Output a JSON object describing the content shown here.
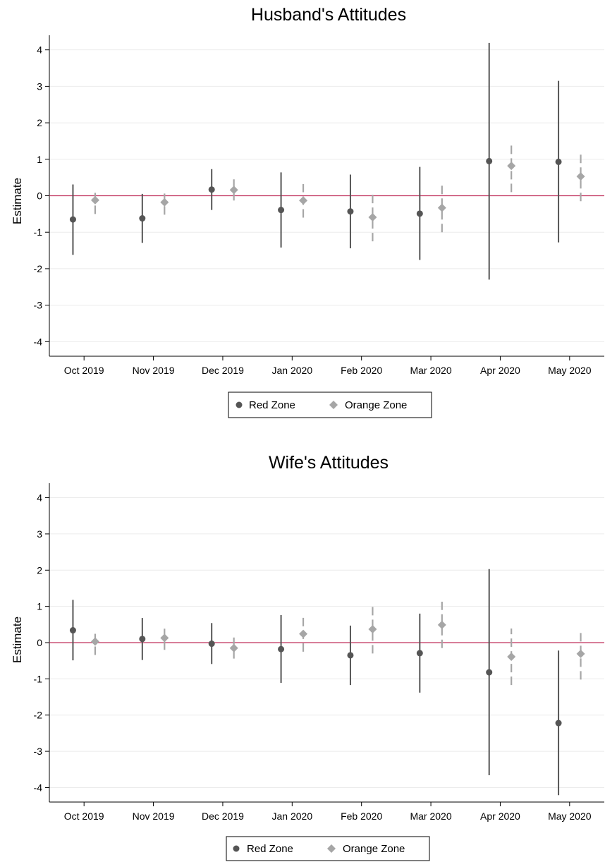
{
  "colors": {
    "red_zone": "#555555",
    "orange_zone": "#a6a6a6",
    "zero_line": "#c0305c",
    "grid": "#ebebeb",
    "axis": "#000000"
  },
  "chart_data": [
    {
      "type": "scatter",
      "title": "Husband's Attitudes",
      "xlabel": "",
      "ylabel": "Estimate",
      "ylim": [
        -4.4,
        4.4
      ],
      "yticks": [
        4,
        3,
        2,
        1,
        0,
        -1,
        -2,
        -3,
        -4
      ],
      "grid": true,
      "legend": {
        "position": "bottom-center",
        "entries": [
          "Red Zone",
          "Orange Zone"
        ]
      },
      "categories": [
        "Oct 2019",
        "Nov 2019",
        "Dec 2019",
        "Jan 2020",
        "Feb 2020",
        "Mar 2020",
        "Apr 2020",
        "May 2020"
      ],
      "reference_line": 0,
      "series": [
        {
          "name": "Red Zone",
          "marker": "circle",
          "ci_style": "solid",
          "values": [
            -0.65,
            -0.62,
            0.17,
            -0.39,
            -0.43,
            -0.49,
            0.95,
            0.93
          ],
          "ci_low": [
            -1.62,
            -1.29,
            -0.39,
            -1.42,
            -1.44,
            -1.76,
            -2.3,
            -1.28
          ],
          "ci_high": [
            0.31,
            0.05,
            0.73,
            0.64,
            0.58,
            0.79,
            4.19,
            3.15
          ]
        },
        {
          "name": "Orange Zone",
          "marker": "diamond",
          "ci_style": "dashed",
          "values": [
            -0.12,
            -0.18,
            0.16,
            -0.13,
            -0.59,
            -0.33,
            0.82,
            0.53
          ],
          "ci_low": [
            -0.5,
            -0.52,
            -0.13,
            -0.6,
            -1.25,
            -1.0,
            0.1,
            -0.15
          ],
          "ci_high": [
            0.13,
            0.11,
            0.45,
            0.32,
            0.07,
            0.32,
            1.45,
            1.21
          ]
        }
      ]
    },
    {
      "type": "scatter",
      "title": "Wife's Attitudes",
      "xlabel": "",
      "ylabel": "Estimate",
      "ylim": [
        -4.4,
        4.4
      ],
      "yticks": [
        4,
        3,
        2,
        1,
        0,
        -1,
        -2,
        -3,
        -4
      ],
      "grid": true,
      "legend": {
        "position": "bottom-center",
        "entries": [
          "Red Zone",
          "Orange Zone"
        ]
      },
      "categories": [
        "Oct 2019",
        "Nov 2019",
        "Dec 2019",
        "Jan 2020",
        "Feb 2020",
        "Mar 2020",
        "Apr 2020",
        "May 2020"
      ],
      "reference_line": 0,
      "series": [
        {
          "name": "Red Zone",
          "marker": "circle",
          "ci_style": "solid",
          "values": [
            0.34,
            0.1,
            -0.03,
            -0.18,
            -0.35,
            -0.29,
            -0.82,
            -2.22
          ],
          "ci_low": [
            -0.49,
            -0.48,
            -0.59,
            -1.11,
            -1.17,
            -1.38,
            -3.66,
            -4.21
          ],
          "ci_high": [
            1.18,
            0.68,
            0.54,
            0.76,
            0.47,
            0.8,
            2.03,
            -0.22
          ]
        },
        {
          "name": "Orange Zone",
          "marker": "diamond",
          "ci_style": "dashed",
          "values": [
            0.03,
            0.13,
            -0.15,
            0.24,
            0.37,
            0.49,
            -0.39,
            -0.31
          ],
          "ci_low": [
            -0.34,
            -0.2,
            -0.44,
            -0.25,
            -0.3,
            -0.15,
            -1.17,
            -1.02
          ],
          "ci_high": [
            0.27,
            0.43,
            0.14,
            0.71,
            1.05,
            1.13,
            0.39,
            0.37
          ]
        }
      ]
    }
  ]
}
